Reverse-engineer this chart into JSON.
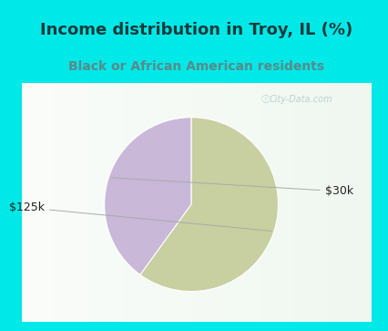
{
  "title": "Income distribution in Troy, IL (%)",
  "subtitle": "Black or African American residents",
  "slices": [
    {
      "label": "$30k",
      "value": 40,
      "color": "#c9b8d8"
    },
    {
      "label": "$125k",
      "value": 60,
      "color": "#c8cfa0"
    }
  ],
  "title_color": "#1a3a3a",
  "subtitle_color": "#5a8a8a",
  "title_fontsize": 13,
  "subtitle_fontsize": 10,
  "bg_cyan": "#00e8e8",
  "bg_chart": "#e8f5ee",
  "label_fontsize": 9,
  "label_color": "#222222",
  "watermark": "City-Data.com",
  "startangle": 90
}
